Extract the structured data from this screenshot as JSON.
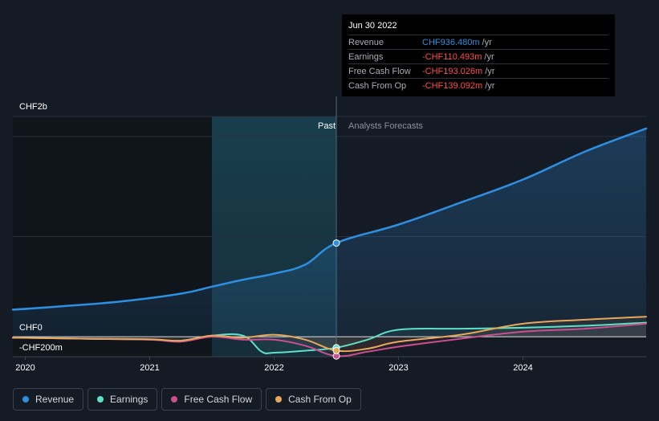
{
  "tooltip": {
    "date": "Jun 30 2022",
    "rows": [
      {
        "label": "Revenue",
        "value": "CHF936.480m",
        "unit": "/yr",
        "color": "#2e8fe0"
      },
      {
        "label": "Earnings",
        "value": "-CHF110.493m",
        "unit": "/yr",
        "color": "#ff4d4d"
      },
      {
        "label": "Free Cash Flow",
        "value": "-CHF193.026m",
        "unit": "/yr",
        "color": "#ff4d4d"
      },
      {
        "label": "Cash From Op",
        "value": "-CHF139.092m",
        "unit": "/yr",
        "color": "#ff4d4d"
      }
    ]
  },
  "legend": [
    {
      "label": "Revenue",
      "color": "#2e8fe0"
    },
    {
      "label": "Earnings",
      "color": "#5ee0c8"
    },
    {
      "label": "Free Cash Flow",
      "color": "#c94f8e"
    },
    {
      "label": "Cash From Op",
      "color": "#e8a85a"
    }
  ],
  "chart_data": {
    "type": "line",
    "currency_axis_labels": {
      "top": "CHF2b",
      "zero": "CHF0",
      "bottom": "-CHF200m"
    },
    "past_label": "Past",
    "forecast_label": "Analysts Forecasts",
    "x_ticks": [
      "2020",
      "2021",
      "2022",
      "2023",
      "2024"
    ],
    "x_range": [
      2019.9,
      2024.99
    ],
    "y_range_millions": [
      -200,
      2200
    ],
    "divider_x": 2022.5,
    "highlight_start_x": 2021.5,
    "series": [
      {
        "name": "Revenue",
        "color": "#2e8fe0",
        "points": [
          [
            2019.9,
            270
          ],
          [
            2020.25,
            300
          ],
          [
            2020.75,
            350
          ],
          [
            2021.25,
            430
          ],
          [
            2021.5,
            500
          ],
          [
            2021.75,
            570
          ],
          [
            2022.0,
            630
          ],
          [
            2022.25,
            720
          ],
          [
            2022.5,
            936
          ],
          [
            2023.0,
            1120
          ],
          [
            2023.5,
            1340
          ],
          [
            2024.0,
            1570
          ],
          [
            2024.5,
            1850
          ],
          [
            2024.99,
            2080
          ]
        ]
      },
      {
        "name": "Earnings",
        "color": "#5ee0c8",
        "points": [
          [
            2019.9,
            -10
          ],
          [
            2020.5,
            -20
          ],
          [
            2021.0,
            -30
          ],
          [
            2021.25,
            -40
          ],
          [
            2021.5,
            10
          ],
          [
            2021.75,
            10
          ],
          [
            2021.9,
            -150
          ],
          [
            2022.0,
            -160
          ],
          [
            2022.25,
            -140
          ],
          [
            2022.5,
            -110
          ],
          [
            2022.75,
            -30
          ],
          [
            2023.0,
            70
          ],
          [
            2023.5,
            80
          ],
          [
            2024.0,
            90
          ],
          [
            2024.5,
            110
          ],
          [
            2024.99,
            140
          ]
        ]
      },
      {
        "name": "Free Cash Flow",
        "color": "#c94f8e",
        "points": [
          [
            2019.9,
            -10
          ],
          [
            2020.5,
            -20
          ],
          [
            2021.0,
            -30
          ],
          [
            2021.25,
            -50
          ],
          [
            2021.5,
            0
          ],
          [
            2021.75,
            -30
          ],
          [
            2022.0,
            -30
          ],
          [
            2022.25,
            -90
          ],
          [
            2022.5,
            -193
          ],
          [
            2022.75,
            -150
          ],
          [
            2023.0,
            -100
          ],
          [
            2023.5,
            -20
          ],
          [
            2024.0,
            50
          ],
          [
            2024.5,
            80
          ],
          [
            2024.99,
            130
          ]
        ]
      },
      {
        "name": "Cash From Op",
        "color": "#e8a85a",
        "points": [
          [
            2019.9,
            -10
          ],
          [
            2020.5,
            -20
          ],
          [
            2021.0,
            -25
          ],
          [
            2021.25,
            -40
          ],
          [
            2021.5,
            10
          ],
          [
            2021.75,
            -10
          ],
          [
            2022.0,
            20
          ],
          [
            2022.25,
            -30
          ],
          [
            2022.5,
            -139
          ],
          [
            2022.75,
            -120
          ],
          [
            2023.0,
            -50
          ],
          [
            2023.5,
            20
          ],
          [
            2024.0,
            130
          ],
          [
            2024.5,
            170
          ],
          [
            2024.99,
            200
          ]
        ]
      }
    ]
  }
}
